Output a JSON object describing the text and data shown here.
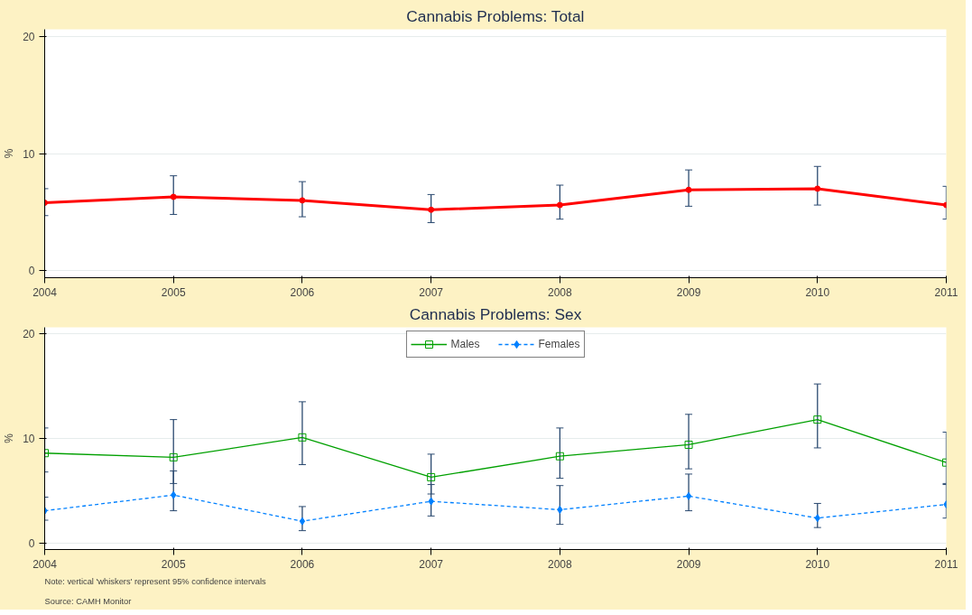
{
  "chart_data": [
    {
      "type": "line",
      "title": "Cannabis Problems: Total",
      "ylabel": "%",
      "x": [
        2004,
        2005,
        2006,
        2007,
        2008,
        2009,
        2010,
        2011
      ],
      "xlim": [
        2004,
        2011
      ],
      "xticks": [
        2004,
        2005,
        2006,
        2007,
        2008,
        2009,
        2010,
        2011
      ],
      "ylim": [
        -0.6,
        20.6
      ],
      "yticks": [
        0,
        10,
        20
      ],
      "grid": "y",
      "legend": false,
      "series": [
        {
          "color": "#ff0000",
          "marker": "circle",
          "line_style": "solid",
          "values": [
            5.8,
            6.3,
            6.0,
            5.2,
            5.6,
            6.9,
            7.0,
            5.6
          ],
          "errors": [
            [
              4.7,
              7.0
            ],
            [
              4.8,
              8.1
            ],
            [
              4.6,
              7.6
            ],
            [
              4.1,
              6.5
            ],
            [
              4.4,
              7.3
            ],
            [
              5.5,
              8.6
            ],
            [
              5.6,
              8.9
            ],
            [
              4.4,
              7.2
            ]
          ]
        }
      ]
    },
    {
      "type": "line",
      "title": "Cannabis Problems: Sex",
      "ylabel": "%",
      "x": [
        2004,
        2005,
        2006,
        2007,
        2008,
        2009,
        2010,
        2011
      ],
      "xlim": [
        2004,
        2011
      ],
      "xticks": [
        2004,
        2005,
        2006,
        2007,
        2008,
        2009,
        2010,
        2011
      ],
      "ylim": [
        -0.6,
        20.6
      ],
      "yticks": [
        0,
        10,
        20
      ],
      "grid": "y",
      "legend": "top",
      "annotations": [
        "Note: vertical 'whiskers' represent 95% confidence intervals",
        "Source: CAMH Monitor"
      ],
      "series": [
        {
          "name": "Males",
          "color": "#00a000",
          "marker": "square",
          "line_style": "solid",
          "values": [
            8.6,
            8.2,
            10.1,
            6.3,
            8.3,
            9.4,
            11.8,
            7.7
          ],
          "errors": [
            [
              6.8,
              11.0
            ],
            [
              5.7,
              11.8
            ],
            [
              7.5,
              13.5
            ],
            [
              4.7,
              8.5
            ],
            [
              6.2,
              11.0
            ],
            [
              7.1,
              12.3
            ],
            [
              9.1,
              15.2
            ],
            [
              5.7,
              10.6
            ]
          ]
        },
        {
          "name": "Females",
          "color": "#0080ff",
          "marker": "diamond",
          "line_style": "dashed",
          "values": [
            3.1,
            4.6,
            2.1,
            4.0,
            3.2,
            4.5,
            2.4,
            3.7
          ],
          "errors": [
            [
              2.2,
              4.4
            ],
            [
              3.1,
              6.9
            ],
            [
              1.2,
              3.5
            ],
            [
              2.6,
              5.6
            ],
            [
              1.8,
              5.5
            ],
            [
              3.1,
              6.6
            ],
            [
              1.5,
              3.8
            ],
            [
              2.4,
              5.6
            ]
          ]
        }
      ]
    }
  ]
}
